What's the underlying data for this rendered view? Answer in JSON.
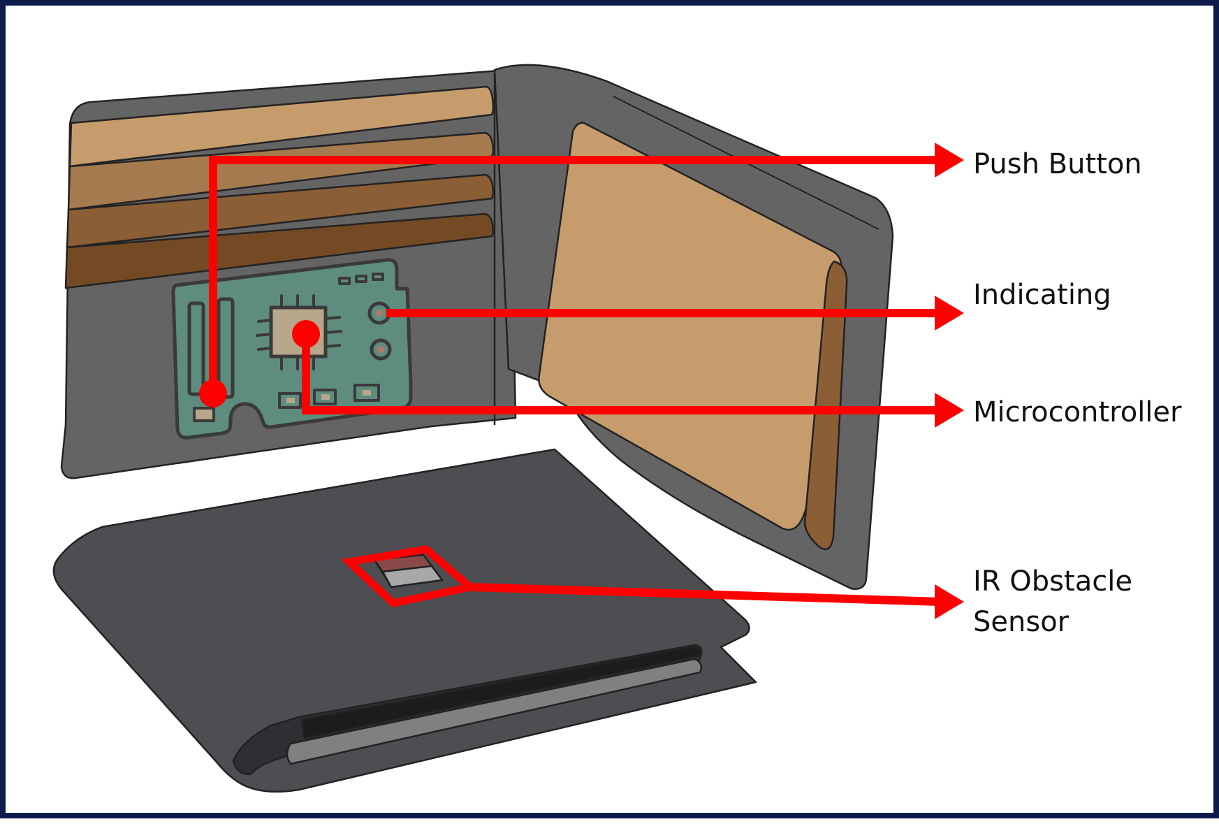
{
  "labels": {
    "push_button": "Push Button",
    "indicating": "Indicating",
    "microcontroller": "Microcontroller",
    "ir_line1": "IR Obstacle",
    "ir_line2": "Sensor"
  },
  "colors": {
    "frame": "#0d1b4b",
    "callout": "#ff0000",
    "wallet_dark": "#4d4e52",
    "wallet_mid": "#646464",
    "leather_tan": "#c69c6d",
    "leather_brown": "#8b5e36",
    "pcb_green": "#5e8c7e"
  }
}
